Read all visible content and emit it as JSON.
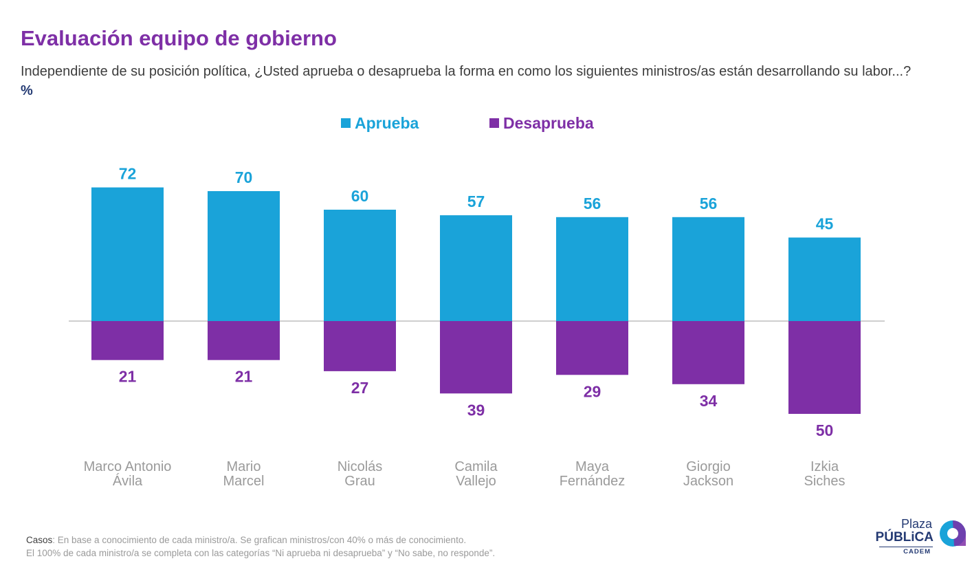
{
  "header": {
    "title": "Evaluación equipo de gobierno",
    "subtitle": "Independiente de su posición política, ¿Usted aprueba o desaprueba la forma en como los siguientes ministros/as están desarrollando su labor...?",
    "unit": "%"
  },
  "chart_data": {
    "type": "bar",
    "categories": [
      "Marco Antonio Ávila",
      "Mario Marcel",
      "Nicolás Grau",
      "Camila Vallejo",
      "Maya Fernández",
      "Giorgio Jackson",
      "Izkia Siches"
    ],
    "category_lines": [
      [
        "Marco Antonio",
        "Ávila"
      ],
      [
        "Mario",
        "Marcel"
      ],
      [
        "Nicolás",
        "Grau"
      ],
      [
        "Camila",
        "Vallejo"
      ],
      [
        "Maya",
        "Fernández"
      ],
      [
        "Giorgio",
        "Jackson"
      ],
      [
        "Izkia",
        "Siches"
      ]
    ],
    "series": [
      {
        "name": "Aprueba",
        "color": "#1aa3d9",
        "direction": "up",
        "values": [
          72,
          70,
          60,
          57,
          56,
          56,
          45
        ]
      },
      {
        "name": "Desaprueba",
        "color": "#7e2fa6",
        "direction": "down",
        "values": [
          21,
          21,
          27,
          39,
          29,
          34,
          50
        ]
      }
    ],
    "legend_position": "top-center",
    "grid": false,
    "baseline_color": "#bdbdbd",
    "label_color": "#9a9a9a"
  },
  "footnote": {
    "casos_label": "Casos",
    "line1": ": En base a conocimiento de cada ministro/a. Se grafican ministros/con 40% o más de conocimiento.",
    "line2": "El 100% de cada ministro/a se completa con las categorías “Ni aprueba ni desaprueba” y “No sabe, no responde”."
  },
  "logo": {
    "line1": "Plaza",
    "line2": "PÚBLiCA",
    "line3": "CADEM"
  }
}
